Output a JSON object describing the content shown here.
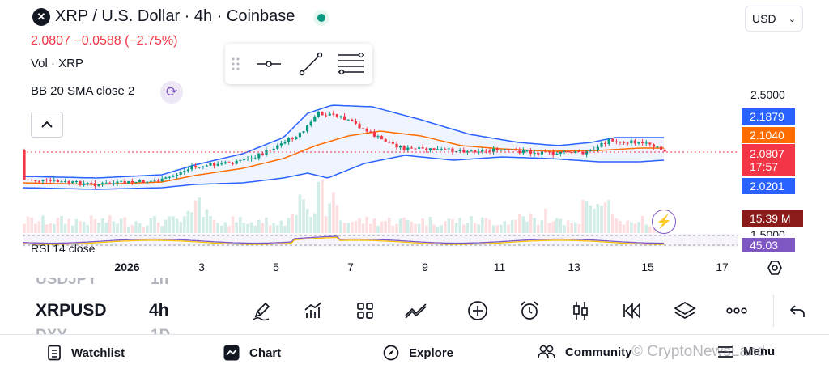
{
  "header": {
    "logo_glyph": "✕",
    "title": "XRP / U.S. Dollar · 4h · Coinbase",
    "price_change": "2.0807 −0.0588 (−2.75%)",
    "volume_label": "Vol · XRP",
    "indicator_label": "BB 20 SMA close 2",
    "currency": "USD"
  },
  "price_scale": {
    "level_top": "2.5000",
    "level_bottom": "1.5000",
    "upper_band": "2.1879",
    "sma": "2.1040",
    "last_price": "2.0807",
    "countdown": "17:57",
    "lower_band": "2.0201",
    "volume": "15.39 M",
    "rsi": "45.03"
  },
  "rsi_label": "RSI 14 close",
  "time_axis": [
    "2026",
    "3",
    "5",
    "7",
    "9",
    "11",
    "13",
    "15",
    "17"
  ],
  "symbols": {
    "prev_symbol": "USDJPY",
    "prev_interval": "1h",
    "current_symbol": "XRPUSD",
    "current_interval": "4h",
    "next_symbol": "DXY",
    "next_interval": "1D"
  },
  "nav": {
    "watchlist": "Watchlist",
    "chart": "Chart",
    "explore": "Explore",
    "community": "Community",
    "menu": "Menu"
  },
  "watermark": "© CryptoNewsLand",
  "colors": {
    "up": "#089981",
    "down": "#f23645",
    "band": "#2962ff",
    "sma": "#ff6d00",
    "rsi": "#7e57c2"
  }
}
